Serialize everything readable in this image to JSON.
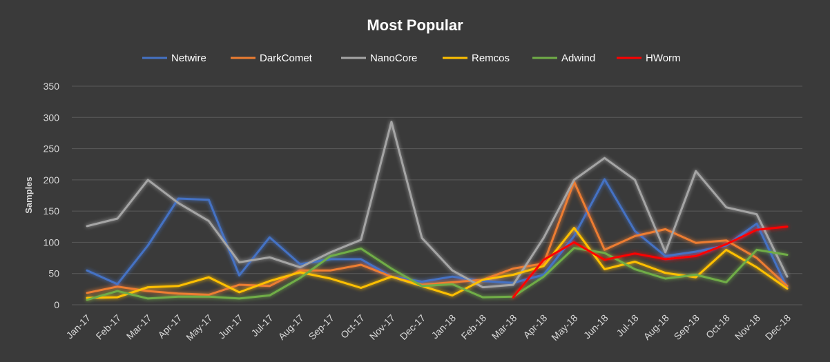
{
  "chart_data": {
    "type": "line",
    "title": "Most Popular",
    "ylabel": "Samples",
    "xlabel": "",
    "ylim": [
      0,
      350
    ],
    "yticks": [
      0,
      50,
      100,
      150,
      200,
      250,
      300,
      350
    ],
    "grid": true,
    "legend": "top",
    "categories": [
      "Jan-17",
      "Feb-17",
      "Mar-17",
      "Apr-17",
      "May-17",
      "Jun-17",
      "Jul-17",
      "Aug-17",
      "Sep-17",
      "Oct-17",
      "Nov-17",
      "Dec-17",
      "Jan-18",
      "Feb-18",
      "Mar-18",
      "Apr-18",
      "May-18",
      "Jun-18",
      "Jul-18",
      "Aug-18",
      "Sep-18",
      "Oct-18",
      "Nov-18",
      "Dec-18"
    ],
    "series": [
      {
        "name": "Netwire",
        "color": "#4472c4",
        "values": [
          55,
          33,
          95,
          170,
          168,
          47,
          108,
          65,
          73,
          73,
          45,
          37,
          45,
          38,
          35,
          48,
          110,
          201,
          118,
          78,
          85,
          95,
          130,
          27
        ]
      },
      {
        "name": "DarkComet",
        "color": "#ed7d31",
        "values": [
          19,
          29,
          22,
          18,
          16,
          32,
          30,
          55,
          55,
          64,
          45,
          32,
          36,
          40,
          58,
          66,
          197,
          88,
          110,
          121,
          99,
          103,
          75,
          30
        ]
      },
      {
        "name": "NanoCore",
        "color": "#a5a5a5",
        "values": [
          126,
          138,
          200,
          163,
          134,
          68,
          76,
          60,
          84,
          104,
          293,
          107,
          55,
          28,
          32,
          107,
          200,
          235,
          200,
          84,
          214,
          156,
          145,
          45
        ]
      },
      {
        "name": "Remcos",
        "color": "#ffc000",
        "values": [
          11,
          12,
          28,
          30,
          44,
          20,
          38,
          52,
          42,
          27,
          45,
          30,
          15,
          40,
          48,
          62,
          123,
          57,
          69,
          51,
          44,
          88,
          60,
          26
        ]
      },
      {
        "name": "Adwind",
        "color": "#70ad47",
        "values": [
          8,
          22,
          10,
          13,
          13,
          10,
          15,
          43,
          78,
          90,
          58,
          30,
          33,
          12,
          13,
          45,
          91,
          83,
          57,
          42,
          48,
          36,
          88,
          80
        ]
      },
      {
        "name": "HWorm",
        "color": "#ff0000",
        "values": [
          null,
          null,
          null,
          null,
          null,
          null,
          null,
          null,
          null,
          null,
          null,
          null,
          null,
          null,
          12,
          72,
          100,
          72,
          82,
          73,
          78,
          97,
          120,
          125
        ]
      }
    ]
  }
}
